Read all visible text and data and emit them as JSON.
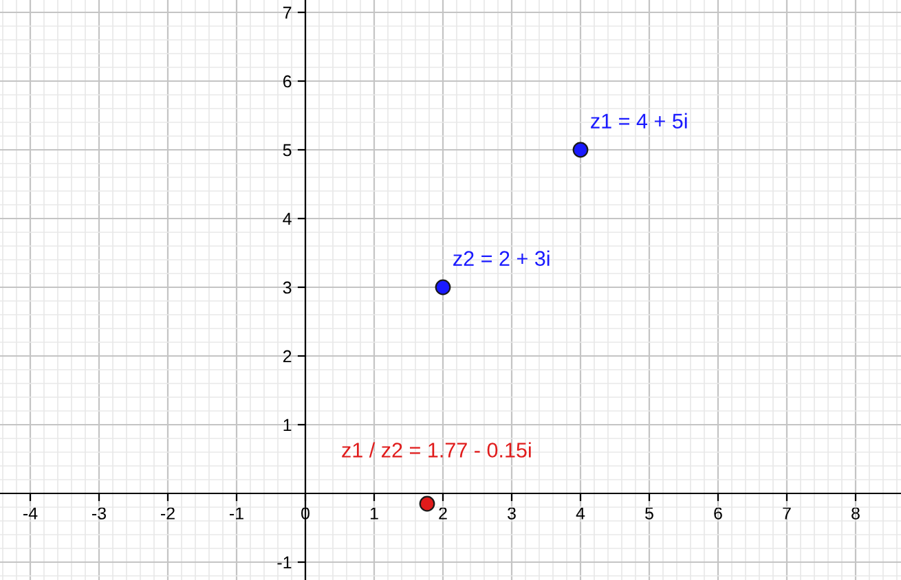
{
  "chart_data": {
    "type": "scatter",
    "series": [
      {
        "color": "#1a1aff",
        "x": [
          4,
          2
        ],
        "values": [
          5,
          3
        ]
      },
      {
        "color": "#e01b1b",
        "x": [
          1.77
        ],
        "values": [
          -0.15
        ]
      }
    ],
    "annotations": [
      {
        "text": "z1 = 4 + 5i",
        "x": 4,
        "y": 5
      },
      {
        "text": "z2 = 2 + 3i",
        "x": 2,
        "y": 3
      },
      {
        "text": "z1 / z2 = 1.77 - 0.15i",
        "x": 1.77,
        "y": -0.15
      }
    ],
    "xlim": [
      -4.44,
      8.66
    ],
    "ylim": [
      -1.26,
      7.18
    ],
    "xticks": [
      -4,
      -3,
      -2,
      -1,
      0,
      1,
      2,
      3,
      4,
      5,
      6,
      7,
      8
    ],
    "yticks": [
      -1,
      1,
      2,
      3,
      4,
      5,
      6,
      7
    ],
    "grid": true,
    "marker": "circle",
    "legend": false
  }
}
